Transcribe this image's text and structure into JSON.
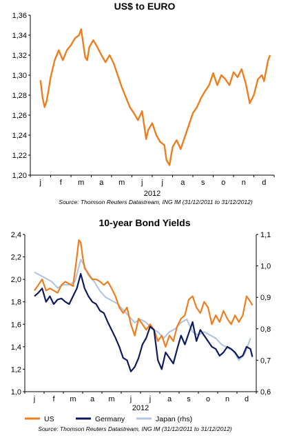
{
  "chart_data": [
    {
      "type": "line",
      "title": "US$ to EURO",
      "xlabel": "2012",
      "categories": [
        "j",
        "f",
        "m",
        "a",
        "m",
        "j",
        "j",
        "a",
        "s",
        "o",
        "n",
        "d"
      ],
      "ylim": [
        1.2,
        1.36
      ],
      "yticks": [
        "1,20",
        "1,22",
        "1,24",
        "1,26",
        "1,28",
        "1,30",
        "1,32",
        "1,34",
        "1,36"
      ],
      "source": "Source: Thomson Reuters Datastream, ING IM (31/12/2011 to 31/12/2012)",
      "color": "#ee7d1e",
      "x": [
        0.0,
        0.1,
        0.2,
        0.3,
        0.4,
        0.5,
        0.7,
        0.9,
        1.1,
        1.3,
        1.5,
        1.7,
        1.9,
        2.0,
        2.1,
        2.2,
        2.3,
        2.4,
        2.6,
        2.8,
        3.0,
        3.2,
        3.4,
        3.6,
        3.8,
        4.0,
        4.2,
        4.4,
        4.6,
        4.8,
        5.0,
        5.2,
        5.3,
        5.5,
        5.7,
        5.9,
        6.1,
        6.2,
        6.35,
        6.5,
        6.7,
        6.9,
        7.1,
        7.3,
        7.5,
        7.7,
        7.9,
        8.1,
        8.3,
        8.5,
        8.7,
        8.9,
        9.1,
        9.3,
        9.5,
        9.7,
        9.9,
        10.1,
        10.3,
        10.5,
        10.7,
        10.9,
        11.0,
        11.2,
        11.3
      ],
      "y": [
        1.295,
        1.278,
        1.268,
        1.274,
        1.285,
        1.298,
        1.315,
        1.325,
        1.315,
        1.325,
        1.33,
        1.337,
        1.34,
        1.346,
        1.332,
        1.318,
        1.315,
        1.328,
        1.335,
        1.328,
        1.32,
        1.313,
        1.32,
        1.312,
        1.3,
        1.288,
        1.278,
        1.268,
        1.262,
        1.255,
        1.264,
        1.236,
        1.245,
        1.252,
        1.24,
        1.233,
        1.23,
        1.215,
        1.21,
        1.228,
        1.235,
        1.226,
        1.238,
        1.25,
        1.262,
        1.268,
        1.277,
        1.284,
        1.29,
        1.302,
        1.29,
        1.3,
        1.296,
        1.29,
        1.303,
        1.298,
        1.306,
        1.292,
        1.272,
        1.28,
        1.296,
        1.3,
        1.294,
        1.315,
        1.32
      ]
    },
    {
      "type": "line",
      "title": "10-year Bond Yields",
      "xlabel": "2012",
      "categories": [
        "j",
        "f",
        "m",
        "a",
        "m",
        "j",
        "j",
        "a",
        "s",
        "o",
        "n",
        "d"
      ],
      "ylim": [
        1.0,
        2.4
      ],
      "yticks": [
        "1,0",
        "1,2",
        "1,4",
        "1,6",
        "1,8",
        "2,0",
        "2,2",
        "2,4"
      ],
      "y2lim": [
        0.6,
        1.1
      ],
      "y2ticks": [
        "0,6",
        "0,7",
        "0,8",
        "0,9",
        "1,0",
        "1,1"
      ],
      "source": "Source: Thomson Reuters Datastream, ING IM (31/12/2011 to 31/12/2012)",
      "series": [
        {
          "name": "US",
          "axis": "left",
          "color": "#ee7d1e",
          "x": [
            0.0,
            0.2,
            0.4,
            0.6,
            0.8,
            1.0,
            1.2,
            1.4,
            1.6,
            1.8,
            2.0,
            2.2,
            2.3,
            2.4,
            2.5,
            2.6,
            2.8,
            3.0,
            3.2,
            3.4,
            3.6,
            3.8,
            4.0,
            4.2,
            4.4,
            4.6,
            4.8,
            5.0,
            5.2,
            5.4,
            5.6,
            5.8,
            6.0,
            6.2,
            6.4,
            6.6,
            6.8,
            7.0,
            7.2,
            7.4,
            7.6,
            7.8,
            8.0,
            8.2,
            8.4,
            8.6,
            8.8,
            9.0,
            9.2,
            9.4,
            9.6,
            9.8,
            10.0,
            10.2,
            10.4,
            10.6,
            10.8,
            11.0,
            11.2,
            11.3
          ],
          "y": [
            1.9,
            1.95,
            2.0,
            1.9,
            1.92,
            1.9,
            1.88,
            1.95,
            1.98,
            1.96,
            1.94,
            2.2,
            2.35,
            2.33,
            2.2,
            2.1,
            2.05,
            2.0,
            2.0,
            1.98,
            1.95,
            1.98,
            1.92,
            1.85,
            1.75,
            1.7,
            1.75,
            1.6,
            1.5,
            1.65,
            1.6,
            1.55,
            1.6,
            1.55,
            1.45,
            1.5,
            1.4,
            1.5,
            1.45,
            1.58,
            1.65,
            1.68,
            1.82,
            1.85,
            1.75,
            1.7,
            1.8,
            1.75,
            1.6,
            1.68,
            1.62,
            1.72,
            1.65,
            1.6,
            1.68,
            1.62,
            1.68,
            1.85,
            1.8,
            1.77
          ]
        },
        {
          "name": "Germany",
          "axis": "left",
          "color": "#0d1a5e",
          "x": [
            0.0,
            0.2,
            0.4,
            0.6,
            0.8,
            1.0,
            1.2,
            1.4,
            1.6,
            1.8,
            2.0,
            2.2,
            2.4,
            2.6,
            2.8,
            3.0,
            3.2,
            3.4,
            3.6,
            3.8,
            4.0,
            4.2,
            4.4,
            4.6,
            4.8,
            5.0,
            5.2,
            5.4,
            5.6,
            5.8,
            6.0,
            6.2,
            6.4,
            6.6,
            6.8,
            7.0,
            7.2,
            7.4,
            7.6,
            7.8,
            8.0,
            8.2,
            8.4,
            8.6,
            8.8,
            9.0,
            9.2,
            9.4,
            9.6,
            9.8,
            10.0,
            10.2,
            10.4,
            10.6,
            10.8,
            11.0,
            11.2,
            11.3
          ],
          "y": [
            1.85,
            1.88,
            1.92,
            1.8,
            1.85,
            1.78,
            1.82,
            1.83,
            1.8,
            1.78,
            1.85,
            1.92,
            2.05,
            1.92,
            1.85,
            1.8,
            1.78,
            1.72,
            1.7,
            1.62,
            1.55,
            1.48,
            1.4,
            1.3,
            1.28,
            1.18,
            1.22,
            1.3,
            1.42,
            1.48,
            1.58,
            1.55,
            1.28,
            1.2,
            1.35,
            1.3,
            1.25,
            1.38,
            1.5,
            1.42,
            1.52,
            1.62,
            1.45,
            1.55,
            1.5,
            1.45,
            1.4,
            1.38,
            1.32,
            1.35,
            1.4,
            1.38,
            1.35,
            1.3,
            1.32,
            1.4,
            1.38,
            1.31
          ]
        },
        {
          "name": "Japan (rhs)",
          "axis": "right",
          "color": "#b4c5e4",
          "x": [
            0.0,
            0.3,
            0.6,
            0.9,
            1.2,
            1.5,
            1.8,
            2.1,
            2.4,
            2.6,
            2.8,
            3.1,
            3.4,
            3.7,
            4.0,
            4.3,
            4.6,
            4.9,
            5.2,
            5.5,
            5.8,
            6.1,
            6.4,
            6.7,
            7.0,
            7.3,
            7.6,
            7.9,
            8.2,
            8.5,
            8.8,
            9.1,
            9.4,
            9.7,
            10.0,
            10.3,
            10.6,
            10.9,
            11.2
          ],
          "y": [
            0.98,
            0.97,
            0.96,
            0.95,
            0.93,
            0.94,
            0.94,
            0.95,
            1.02,
            1.0,
            0.97,
            0.95,
            0.92,
            0.9,
            0.89,
            0.88,
            0.86,
            0.84,
            0.82,
            0.83,
            0.82,
            0.8,
            0.79,
            0.77,
            0.79,
            0.8,
            0.82,
            0.83,
            0.79,
            0.78,
            0.79,
            0.78,
            0.77,
            0.75,
            0.74,
            0.73,
            0.7,
            0.72,
            0.77
          ]
        }
      ]
    }
  ]
}
